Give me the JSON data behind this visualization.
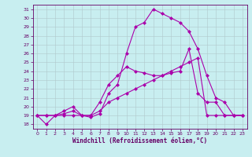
{
  "xlabel": "Windchill (Refroidissement éolien,°C)",
  "bg_color": "#c8eef0",
  "line_color": "#aa00aa",
  "grid_color": "#b0c8cc",
  "xlim": [
    -0.5,
    23.5
  ],
  "ylim": [
    17.5,
    31.5
  ],
  "yticks": [
    18,
    19,
    20,
    21,
    22,
    23,
    24,
    25,
    26,
    27,
    28,
    29,
    30,
    31
  ],
  "xticks": [
    0,
    1,
    2,
    3,
    4,
    5,
    6,
    7,
    8,
    9,
    10,
    11,
    12,
    13,
    14,
    15,
    16,
    17,
    18,
    19,
    20,
    21,
    22,
    23
  ],
  "series1_x": [
    0,
    1,
    2,
    3,
    4,
    5,
    6,
    7,
    8,
    9,
    10,
    11,
    12,
    13,
    14,
    15,
    16,
    17,
    18,
    19,
    20,
    21,
    22,
    23
  ],
  "series1_y": [
    19.0,
    18.0,
    19.0,
    19.5,
    20.0,
    19.0,
    18.8,
    19.2,
    21.5,
    22.5,
    26.0,
    29.0,
    29.5,
    31.0,
    30.5,
    30.0,
    29.5,
    28.5,
    26.5,
    23.5,
    21.0,
    20.5,
    19.0,
    19.0
  ],
  "series2_x": [
    0,
    1,
    2,
    3,
    4,
    5,
    6,
    7,
    8,
    9,
    10,
    11,
    12,
    13,
    14,
    15,
    16,
    17,
    18,
    19,
    20,
    21,
    22,
    23
  ],
  "series2_y": [
    19.0,
    19.0,
    19.0,
    19.2,
    19.5,
    19.0,
    19.0,
    20.5,
    22.5,
    23.5,
    24.5,
    24.0,
    23.8,
    23.5,
    23.5,
    23.8,
    24.0,
    26.5,
    21.5,
    20.5,
    20.5,
    19.0,
    19.0,
    19.0
  ],
  "series3_x": [
    0,
    1,
    2,
    3,
    4,
    5,
    6,
    7,
    8,
    9,
    10,
    11,
    12,
    13,
    14,
    15,
    16,
    17,
    18,
    19,
    20,
    21,
    22,
    23
  ],
  "series3_y": [
    19.0,
    19.0,
    19.0,
    19.0,
    19.0,
    19.0,
    19.0,
    19.5,
    20.5,
    21.0,
    21.5,
    22.0,
    22.5,
    23.0,
    23.5,
    24.0,
    24.5,
    25.0,
    25.5,
    19.0,
    19.0,
    19.0,
    19.0,
    19.0
  ]
}
